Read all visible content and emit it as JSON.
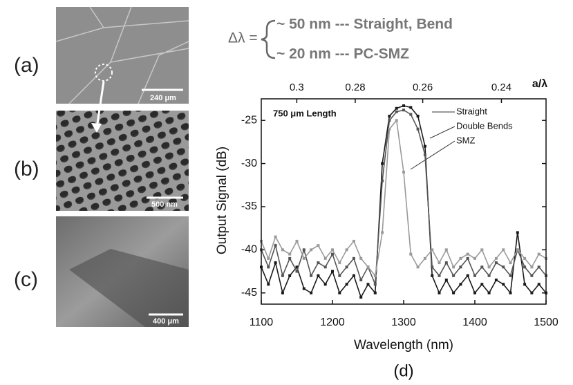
{
  "panels": [
    {
      "label": "(a)",
      "scale_bar": "240 μm"
    },
    {
      "label": "(b)",
      "scale_bar": "500 nm"
    },
    {
      "label": "(c)",
      "scale_bar": "400 μm"
    }
  ],
  "chart_data": {
    "type": "line",
    "panel_label": "(d)",
    "equation": {
      "lhs": "Δλ =",
      "lines": [
        "~ 50 nm --- Straight, Bend",
        "~ 20 nm --- PC-SMZ"
      ]
    },
    "annotation": "750 μm Length",
    "x_label": "Wavelength (nm)",
    "y_label": "Output Signal (dB)",
    "x2_label": "a/λ",
    "x": [
      1100,
      1110,
      1120,
      1130,
      1140,
      1150,
      1160,
      1170,
      1180,
      1190,
      1200,
      1210,
      1220,
      1230,
      1240,
      1250,
      1260,
      1270,
      1280,
      1290,
      1300,
      1310,
      1320,
      1330,
      1340,
      1350,
      1360,
      1370,
      1380,
      1390,
      1400,
      1410,
      1420,
      1430,
      1440,
      1450,
      1460,
      1470,
      1480,
      1490,
      1500
    ],
    "series": [
      {
        "name": "Straight",
        "color": "#1a1a1a",
        "values": [
          -42,
          -44,
          -41.5,
          -45,
          -43,
          -42,
          -44.5,
          -45,
          -43,
          -44,
          -42.5,
          -45,
          -44,
          -43,
          -45.5,
          -44,
          -45,
          -30,
          -24.5,
          -23.6,
          -23.3,
          -23.5,
          -24.5,
          -28,
          -43,
          -45,
          -43.5,
          -45,
          -44,
          -43,
          -45,
          -44,
          -45,
          -43.5,
          -44,
          -45,
          -38,
          -44,
          -45,
          -44,
          -45
        ]
      },
      {
        "name": "Double Bends",
        "color": "#555555",
        "values": [
          -40,
          -42,
          -39.5,
          -43,
          -41,
          -42.5,
          -40,
          -43,
          -41.5,
          -42,
          -40.5,
          -43,
          -42,
          -41,
          -43.5,
          -42,
          -44,
          -32,
          -25,
          -24,
          -23.8,
          -24.3,
          -26,
          -29,
          -42,
          -43,
          -41.5,
          -43,
          -42,
          -41,
          -43,
          -42,
          -43,
          -41.5,
          -42,
          -43,
          -40,
          -42,
          -43,
          -42,
          -43
        ]
      },
      {
        "name": "SMZ",
        "color": "#9a9a9a",
        "values": [
          -39,
          -41,
          -38.5,
          -40,
          -40.5,
          -39,
          -41,
          -40,
          -39.5,
          -41,
          -40,
          -41.5,
          -40,
          -39,
          -41,
          -42,
          -43,
          -38,
          -26,
          -25,
          -31,
          -40.5,
          -42,
          -41,
          -40,
          -41.5,
          -40,
          -42,
          -41,
          -40.5,
          -41,
          -40,
          -42,
          -41,
          -40,
          -41.5,
          -40,
          -41,
          -42,
          -40.5,
          -41
        ]
      }
    ],
    "xlim": [
      1100,
      1500
    ],
    "xticks": [
      1100,
      1200,
      1300,
      1400,
      1500
    ],
    "ylim": [
      -46.3,
      -22.5
    ],
    "yticks": [
      -25,
      -30,
      -35,
      -40,
      -45
    ],
    "x2lim": [
      0.3136,
      0.23
    ],
    "x2scale": "reciprocal",
    "x2ticks": [
      0.3,
      0.28,
      0.26,
      0.24
    ]
  }
}
